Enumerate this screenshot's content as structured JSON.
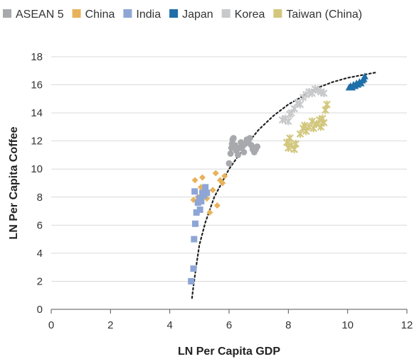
{
  "chart_data": {
    "type": "scatter",
    "title": "",
    "xlabel": "LN Per Capita GDP",
    "ylabel": "LN Per Capita Coffee",
    "xlim": [
      0,
      12
    ],
    "ylim": [
      0,
      18
    ],
    "x_ticks": [
      0,
      2,
      4,
      6,
      8,
      10,
      12
    ],
    "y_ticks": [
      0,
      2,
      4,
      6,
      8,
      10,
      12,
      14,
      16,
      18
    ],
    "x_tick_labels": [
      "0",
      "2",
      "4",
      "6",
      "8",
      "10",
      "12"
    ],
    "y_tick_labels": [
      "0",
      "2",
      "4",
      "6",
      "8",
      "10",
      "12",
      "14",
      "16",
      "18"
    ],
    "grid": "horizontal",
    "legend_position": "top",
    "series": [
      {
        "name": "ASEAN 5",
        "color": "#a7a9ac",
        "marker": "circle",
        "points": [
          [
            6.0,
            10.4
          ],
          [
            6.05,
            11.1
          ],
          [
            6.08,
            11.5
          ],
          [
            6.1,
            11.8
          ],
          [
            6.12,
            12.1
          ],
          [
            6.15,
            12.2
          ],
          [
            6.2,
            11.7
          ],
          [
            6.25,
            11.3
          ],
          [
            6.3,
            11.0
          ],
          [
            6.35,
            11.5
          ],
          [
            6.4,
            11.9
          ],
          [
            6.45,
            11.6
          ],
          [
            6.5,
            11.2
          ],
          [
            6.55,
            11.8
          ],
          [
            6.6,
            12.1
          ],
          [
            6.65,
            11.9
          ],
          [
            6.7,
            12.2
          ],
          [
            6.75,
            11.7
          ],
          [
            6.8,
            11.4
          ],
          [
            6.85,
            11.2
          ],
          [
            6.9,
            11.4
          ],
          [
            6.95,
            11.6
          ]
        ]
      },
      {
        "name": "China",
        "color": "#e8b25a",
        "marker": "diamond",
        "points": [
          [
            4.8,
            7.8
          ],
          [
            4.85,
            9.2
          ],
          [
            4.95,
            8.0
          ],
          [
            5.05,
            8.7
          ],
          [
            5.1,
            9.4
          ],
          [
            5.15,
            8.4
          ],
          [
            5.25,
            7.9
          ],
          [
            5.35,
            6.9
          ],
          [
            5.45,
            8.5
          ],
          [
            5.55,
            9.7
          ],
          [
            5.6,
            7.4
          ],
          [
            5.7,
            9.2
          ],
          [
            5.78,
            9.0
          ],
          [
            5.85,
            9.5
          ]
        ]
      },
      {
        "name": "India",
        "color": "#8ea6d6",
        "marker": "square",
        "points": [
          [
            4.72,
            2.0
          ],
          [
            4.8,
            2.9
          ],
          [
            4.82,
            5.0
          ],
          [
            4.86,
            6.1
          ],
          [
            4.84,
            8.4
          ],
          [
            4.9,
            6.9
          ],
          [
            4.95,
            7.6
          ],
          [
            5.0,
            7.9
          ],
          [
            5.02,
            7.1
          ],
          [
            5.06,
            7.7
          ],
          [
            5.1,
            8.3
          ],
          [
            5.15,
            8.1
          ],
          [
            5.2,
            8.7
          ],
          [
            5.25,
            8.3
          ]
        ]
      },
      {
        "name": "Japan",
        "color": "#1f6fa8",
        "marker": "triangle",
        "points": [
          [
            10.05,
            15.8
          ],
          [
            10.1,
            15.9
          ],
          [
            10.15,
            15.8
          ],
          [
            10.2,
            16.0
          ],
          [
            10.25,
            15.9
          ],
          [
            10.3,
            16.1
          ],
          [
            10.35,
            16.0
          ],
          [
            10.4,
            16.2
          ],
          [
            10.45,
            16.1
          ],
          [
            10.5,
            16.3
          ],
          [
            10.55,
            16.4
          ],
          [
            10.58,
            16.6
          ]
        ]
      },
      {
        "name": "Korea",
        "color": "#c8c9cb",
        "marker": "asterisk",
        "points": [
          [
            7.8,
            13.5
          ],
          [
            7.9,
            13.6
          ],
          [
            8.0,
            13.4
          ],
          [
            8.05,
            13.9
          ],
          [
            8.1,
            14.0
          ],
          [
            8.2,
            14.3
          ],
          [
            8.3,
            14.7
          ],
          [
            8.4,
            14.6
          ],
          [
            8.5,
            15.1
          ],
          [
            8.6,
            15.3
          ],
          [
            8.7,
            15.5
          ],
          [
            8.8,
            15.4
          ],
          [
            8.9,
            15.7
          ],
          [
            9.0,
            15.6
          ],
          [
            9.1,
            15.5
          ],
          [
            9.2,
            15.4
          ]
        ]
      },
      {
        "name": "Taiwan (China)",
        "color": "#d2c77d",
        "marker": "asterisk",
        "points": [
          [
            7.95,
            11.9
          ],
          [
            8.0,
            11.5
          ],
          [
            8.05,
            12.2
          ],
          [
            8.1,
            11.7
          ],
          [
            8.2,
            11.4
          ],
          [
            8.25,
            11.8
          ],
          [
            8.4,
            12.5
          ],
          [
            8.5,
            12.9
          ],
          [
            8.55,
            13.1
          ],
          [
            8.6,
            12.7
          ],
          [
            8.7,
            13.0
          ],
          [
            8.8,
            13.4
          ],
          [
            8.85,
            12.9
          ],
          [
            8.95,
            13.2
          ],
          [
            9.05,
            13.5
          ],
          [
            9.1,
            13.0
          ],
          [
            9.15,
            13.6
          ],
          [
            9.2,
            13.3
          ],
          [
            9.25,
            14.2
          ],
          [
            9.3,
            14.6
          ]
        ]
      }
    ],
    "trendline": {
      "type": "logarithmic",
      "style": "dotted",
      "color": "#222222",
      "points": [
        [
          4.75,
          0.8
        ],
        [
          4.8,
          1.7
        ],
        [
          4.9,
          3.2
        ],
        [
          5.0,
          4.6
        ],
        [
          5.2,
          6.2
        ],
        [
          5.5,
          8.0
        ],
        [
          6.0,
          10.0
        ],
        [
          6.5,
          11.5
        ],
        [
          7.0,
          12.8
        ],
        [
          7.5,
          13.8
        ],
        [
          8.0,
          14.6
        ],
        [
          8.5,
          15.2
        ],
        [
          9.0,
          15.8
        ],
        [
          9.5,
          16.2
        ],
        [
          10.0,
          16.5
        ],
        [
          10.5,
          16.7
        ],
        [
          11.0,
          16.9
        ]
      ]
    }
  }
}
